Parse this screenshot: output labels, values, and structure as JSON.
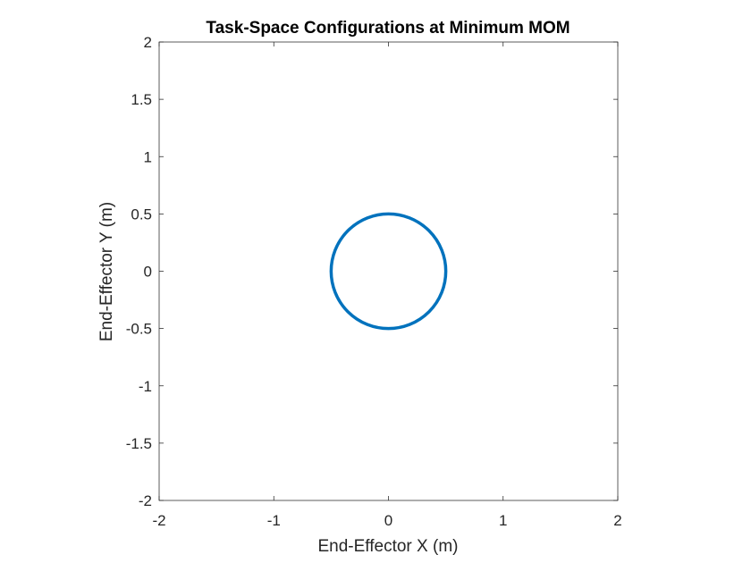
{
  "chart_data": {
    "type": "line",
    "title": "Task-Space Configurations at Minimum MOM",
    "xlabel": "End-Effector X (m)",
    "ylabel": "End-Effector Y (m)",
    "xlim": [
      -2,
      2
    ],
    "ylim": [
      -2,
      2
    ],
    "xticks": [
      -2,
      -1,
      0,
      1,
      2
    ],
    "yticks": [
      -2,
      -1.5,
      -1,
      -0.5,
      0,
      0.5,
      1,
      1.5,
      2
    ],
    "xtick_labels": [
      "-2",
      "-1",
      "0",
      "1",
      "2"
    ],
    "ytick_labels": [
      "-2",
      "-1.5",
      "-1",
      "-0.5",
      "0",
      "0.5",
      "1",
      "1.5",
      "2"
    ],
    "grid": false,
    "legend": "none",
    "series": [
      {
        "shape": "circle",
        "center": [
          0,
          0
        ],
        "radius": 0.5,
        "color": "#0072BD"
      }
    ]
  }
}
